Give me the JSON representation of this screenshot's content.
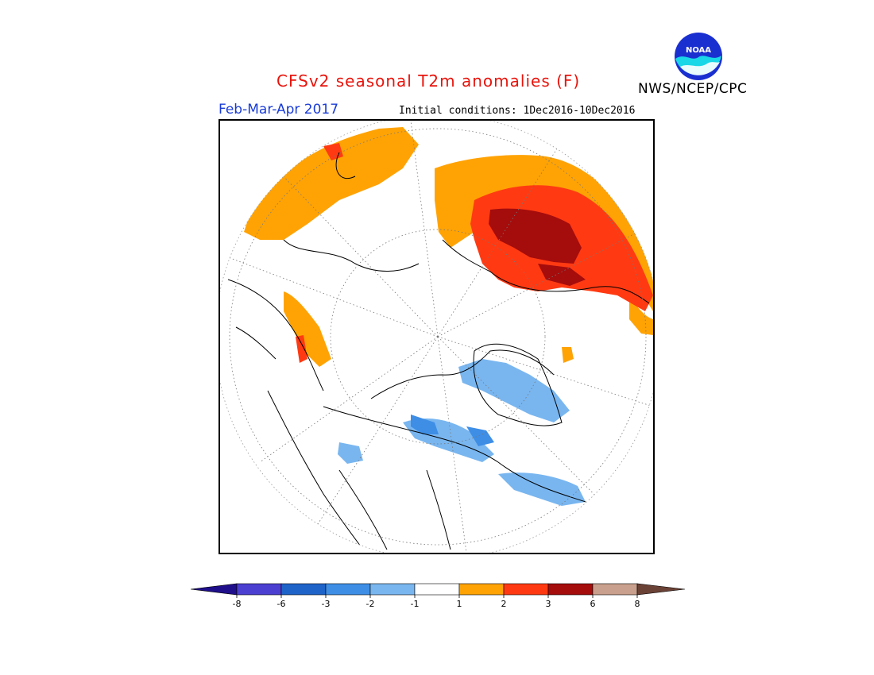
{
  "header": {
    "title": "CFSv2 seasonal T2m anomalies (F)",
    "agency": "NWS/NCEP/CPC",
    "period": "Feb-Mar-Apr 2017",
    "initial_conditions": "Initial conditions: 1Dec2016-10Dec2016",
    "logo_text": "NOAA"
  },
  "legend": {
    "tick_labels": [
      "-8",
      "-6",
      "-3",
      "-2",
      "-1",
      "1",
      "2",
      "3",
      "6",
      "8"
    ],
    "bins": [
      {
        "color": "#1f0f8a"
      },
      {
        "color": "#4a3fd0"
      },
      {
        "color": "#1e63c8"
      },
      {
        "color": "#3e8ee6"
      },
      {
        "color": "#79b6f0"
      },
      {
        "color": "#ffffff"
      },
      {
        "color": "#ffa305"
      },
      {
        "color": "#ff3a12"
      },
      {
        "color": "#a50c0c"
      },
      {
        "color": "#c9a08d"
      },
      {
        "color": "#6b4236"
      }
    ]
  }
}
